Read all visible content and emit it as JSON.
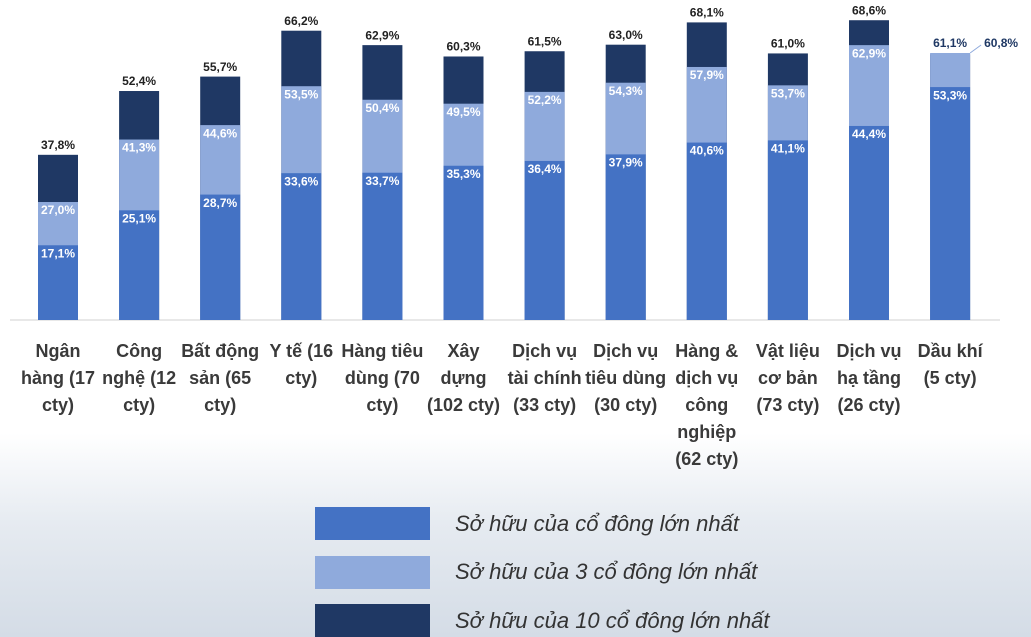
{
  "chart_data": {
    "type": "overlapping-bar",
    "categories": [
      "Ngân hàng (17 cty)",
      "Công nghệ (12 cty)",
      "Bất động sản (65 cty)",
      "Y tế (16 cty)",
      "Hàng tiêu dùng (70 cty)",
      "Xây dựng (102 cty)",
      "Dịch vụ tài chính (33 cty)",
      "Dịch vụ tiêu dùng (30 cty)",
      "Hàng & dịch vụ công nghiệp (62 cty)",
      "Vật liệu cơ bản (73 cty)",
      "Dịch vụ hạ tầng (26 cty)",
      "Dầu khí (5 cty)"
    ],
    "series": [
      {
        "name": "Sở hữu của cổ đông lớn nhất",
        "color": "#4472c4",
        "values": [
          17.1,
          25.1,
          28.7,
          33.6,
          33.7,
          35.3,
          36.4,
          37.9,
          40.6,
          41.1,
          44.4,
          53.3
        ],
        "value_labels": [
          "17,1%",
          "25,1%",
          "28,7%",
          "33,6%",
          "33,7%",
          "35,3%",
          "36,4%",
          "37,9%",
          "40,6%",
          "41,1%",
          "44,4%",
          "53,3%"
        ]
      },
      {
        "name": "Sở hữu của 3 cổ đông lớn nhất",
        "color": "#8faadc",
        "values": [
          27.0,
          41.3,
          44.6,
          53.5,
          50.4,
          49.5,
          52.2,
          54.3,
          57.9,
          53.7,
          62.9,
          61.1
        ],
        "value_labels": [
          "27,0%",
          "41,3%",
          "44,6%",
          "53,5%",
          "50,4%",
          "49,5%",
          "52,2%",
          "54,3%",
          "57,9%",
          "53,7%",
          "62,9%",
          "61,1%"
        ]
      },
      {
        "name": "Sở hữu của 10 cổ đông lớn nhất",
        "color": "#1f3864",
        "values": [
          37.8,
          52.4,
          55.7,
          66.2,
          62.9,
          60.3,
          61.5,
          63.0,
          68.1,
          61.0,
          68.6,
          60.8
        ],
        "value_labels": [
          "37,8%",
          "52,4%",
          "55,7%",
          "66,2%",
          "62,9%",
          "60,3%",
          "61,5%",
          "63,0%",
          "68,1%",
          "61,0%",
          "68,6%",
          "60,8%"
        ]
      }
    ]
  }
}
